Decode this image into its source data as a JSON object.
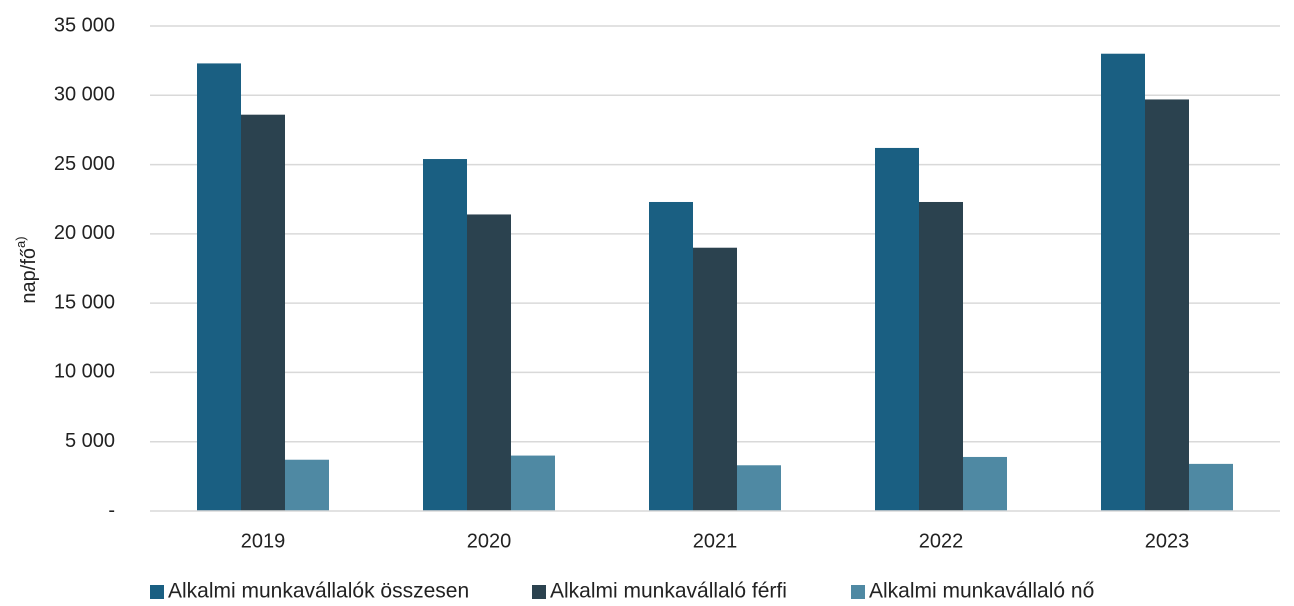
{
  "chart_data": {
    "type": "bar",
    "title": "",
    "xlabel": "",
    "ylabel": "nap/fő",
    "ylabel_superscript": "a)",
    "categories": [
      "2019",
      "2020",
      "2021",
      "2022",
      "2023"
    ],
    "series": [
      {
        "name": "Alkalmi munkavállalók összesen",
        "color": "#1a5f82",
        "values": [
          32300,
          25400,
          22300,
          26200,
          33000
        ]
      },
      {
        "name": "Alkalmi munkavállaló férfi",
        "color": "#2b424f",
        "values": [
          28600,
          21400,
          19000,
          22300,
          29700
        ]
      },
      {
        "name": "Alkalmi munkavállaló nő",
        "color": "#4f89a3",
        "values": [
          3700,
          4000,
          3300,
          3900,
          3400
        ]
      }
    ],
    "ylim": [
      0,
      35000
    ],
    "yticks": [
      0,
      5000,
      10000,
      15000,
      20000,
      25000,
      30000,
      35000
    ],
    "ytick_labels": [
      "-",
      "5 000",
      "10 000",
      "15 000",
      "20 000",
      "25 000",
      "30 000",
      "35 000"
    ],
    "grid": true,
    "gridline_color": "#d9d9d9",
    "legend_position": "bottom"
  }
}
